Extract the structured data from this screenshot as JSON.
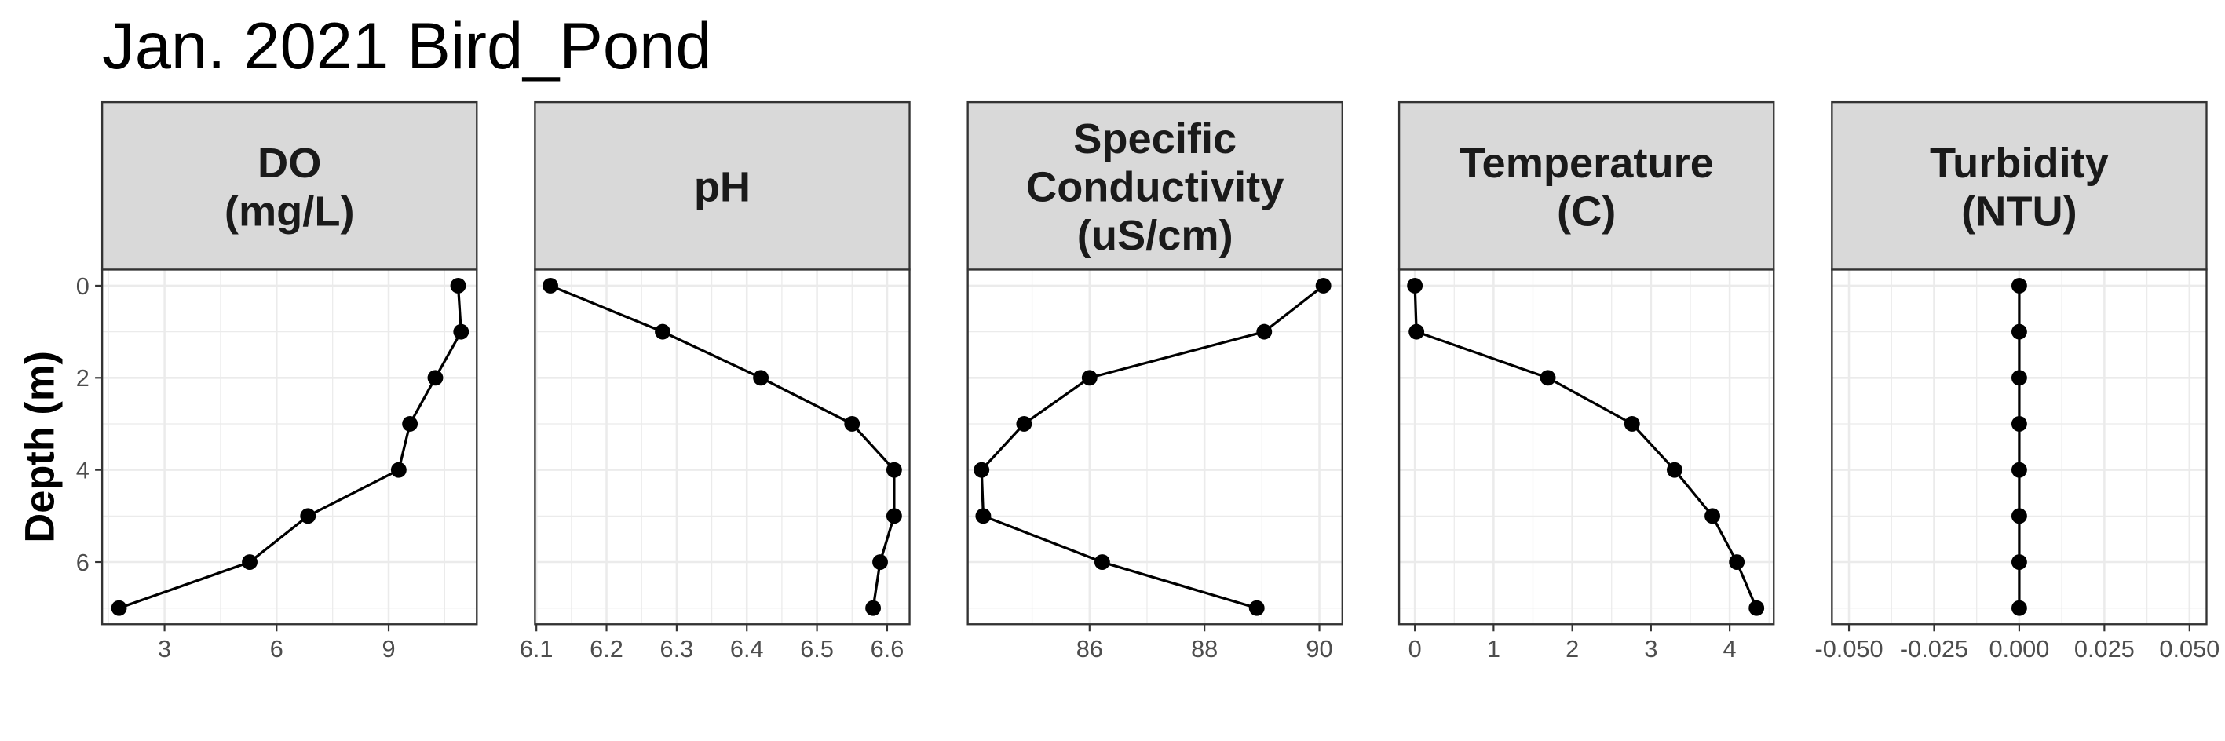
{
  "title": "Jan. 2021 Bird_Pond",
  "chart_data": [
    {
      "type": "line",
      "title": [
        "DO",
        "(mg/L)"
      ],
      "ylabel": "Depth (m)",
      "x": [
        10.86,
        10.94,
        10.25,
        9.57,
        9.27,
        6.84,
        5.28,
        1.78
      ],
      "y": [
        0,
        1,
        2,
        3,
        4,
        5,
        6,
        7
      ],
      "xlim": [
        1.33,
        11.36
      ],
      "xticks": [
        3,
        6,
        9
      ],
      "ylim": [
        -0.35,
        7.35
      ],
      "yticks": [
        0,
        2,
        4,
        6
      ],
      "y_reversed": true,
      "grid": true,
      "color": "#000000"
    },
    {
      "type": "line",
      "title": [
        "pH"
      ],
      "x": [
        6.12,
        6.28,
        6.42,
        6.55,
        6.61,
        6.61,
        6.59,
        6.58
      ],
      "y": [
        0,
        1,
        2,
        3,
        4,
        5,
        6,
        7
      ],
      "xlim": [
        6.098,
        6.632
      ],
      "xticks": [
        6.1,
        6.2,
        6.3,
        6.4,
        6.5,
        6.6
      ],
      "ylim": [
        -0.35,
        7.35
      ],
      "yticks": [
        0,
        2,
        4,
        6
      ],
      "y_reversed": true,
      "grid": true,
      "color": "#000000"
    },
    {
      "type": "line",
      "title": [
        "Specific",
        "Conductivity",
        "(uS/cm)"
      ],
      "x": [
        90.07,
        89.04,
        86.0,
        84.86,
        84.12,
        84.15,
        86.22,
        88.91
      ],
      "y": [
        0,
        1,
        2,
        3,
        4,
        5,
        6,
        7
      ],
      "xlim": [
        83.88,
        90.4
      ],
      "xticks": [
        86,
        88,
        90
      ],
      "ylim": [
        -0.35,
        7.35
      ],
      "yticks": [
        0,
        2,
        4,
        6
      ],
      "y_reversed": true,
      "grid": true,
      "color": "#000000"
    },
    {
      "type": "line",
      "title": [
        "Temperature",
        "(C)"
      ],
      "x": [
        0.0,
        0.02,
        1.69,
        2.76,
        3.3,
        3.78,
        4.09,
        4.34
      ],
      "y": [
        0,
        1,
        2,
        3,
        4,
        5,
        6,
        7
      ],
      "xlim": [
        -0.2,
        4.56
      ],
      "xticks": [
        0,
        1,
        2,
        3,
        4
      ],
      "ylim": [
        -0.35,
        7.35
      ],
      "yticks": [
        0,
        2,
        4,
        6
      ],
      "y_reversed": true,
      "grid": true,
      "color": "#000000"
    },
    {
      "type": "line",
      "title": [
        "Turbidity",
        "(NTU)"
      ],
      "x": [
        0,
        0,
        0,
        0,
        0,
        0,
        0,
        0
      ],
      "y": [
        0,
        1,
        2,
        3,
        4,
        5,
        6,
        7
      ],
      "xlim": [
        -0.055,
        0.055
      ],
      "xticks": [
        {
          "value": -0.05,
          "label": "-0.050"
        },
        {
          "value": -0.025,
          "label": "-0.025"
        },
        {
          "value": 0,
          "label": "0.000"
        },
        {
          "value": 0.025,
          "label": "0.025"
        },
        {
          "value": 0.05,
          "label": "0.050"
        }
      ],
      "ylim": [
        -0.35,
        7.35
      ],
      "yticks": [
        0,
        2,
        4,
        6
      ],
      "y_reversed": true,
      "grid": true,
      "color": "#000000"
    }
  ]
}
